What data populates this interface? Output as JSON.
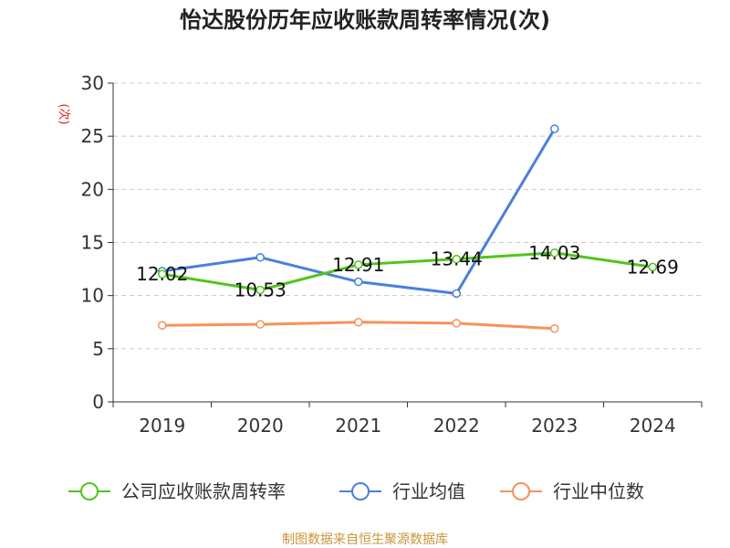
{
  "chart_data": {
    "type": "line",
    "title": "怡达股份历年应收账款周转率情况(次)",
    "ylabel": "(次)",
    "xlabel": "",
    "categories": [
      "2019",
      "2020",
      "2021",
      "2022",
      "2023",
      "2024"
    ],
    "ylim": [
      0,
      30
    ],
    "yticks": [
      0,
      5,
      10,
      15,
      20,
      25,
      30
    ],
    "grid": true,
    "legend_position": "bottom",
    "series": [
      {
        "name": "公司应收账款周转率",
        "color": "#52c41a",
        "values": [
          12.02,
          10.53,
          12.91,
          13.44,
          14.03,
          12.69
        ],
        "labels": [
          "12.02",
          "10.53",
          "12.91",
          "13.44",
          "14.03",
          "12.69"
        ]
      },
      {
        "name": "行业均值",
        "color": "#4a7fdc",
        "values": [
          12.3,
          13.6,
          11.3,
          10.2,
          25.7,
          null
        ]
      },
      {
        "name": "行业中位数",
        "color": "#f5925a",
        "values": [
          7.2,
          7.3,
          7.5,
          7.4,
          6.9,
          null
        ]
      }
    ]
  },
  "source": "制图数据来自恒生聚源数据库"
}
